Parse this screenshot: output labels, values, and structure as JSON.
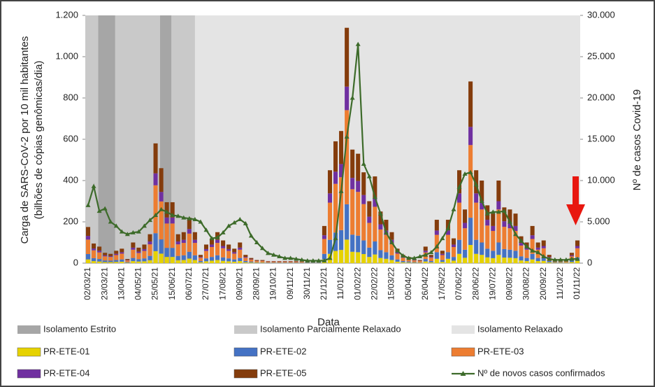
{
  "chart_data": {
    "type": "bar_line",
    "xlabel": "Data",
    "ylabel": [
      "Carga de SARS-CoV-2 por 10 mil habitantes",
      "(bilhões de cópias genômicas/dia)"
    ],
    "y2label": "Nº de casos Covid-19",
    "categories": [
      "02/03/21",
      null,
      null,
      "23/03/21",
      null,
      null,
      "13/04/21",
      null,
      null,
      "04/05/21",
      null,
      null,
      "25/05/21",
      null,
      null,
      "15/06/21",
      null,
      null,
      "06/07/21",
      null,
      null,
      "27/07/21",
      null,
      null,
      "17/08/21",
      null,
      null,
      "09/09/21",
      null,
      null,
      "28/09/21",
      null,
      null,
      "19/10/21",
      null,
      null,
      "09/11/21",
      null,
      null,
      "30/11/21",
      null,
      null,
      "21/12/21",
      null,
      null,
      "11/01/22",
      null,
      null,
      "01/02/22",
      null,
      null,
      "22/02/22",
      null,
      null,
      "15/03/22",
      null,
      null,
      "05/04/22",
      null,
      null,
      "26/04/22",
      null,
      null,
      "17/05/22",
      null,
      null,
      "07/06/22",
      null,
      null,
      "28/06/22",
      null,
      null,
      "19/07/22",
      null,
      null,
      "09/08/22",
      null,
      null,
      "30/08/22",
      null,
      null,
      "20/09/22",
      null,
      null,
      "11/10/22",
      null,
      null,
      "01/11/22"
    ],
    "regions": [
      {
        "name": "Isolamento Estrito",
        "color": "#a6a6a6"
      },
      {
        "name": "Isolamento Parcialmente Relaxado",
        "color": "#c9c9c9"
      },
      {
        "name": "Isolamento Relaxado",
        "color": "#e4e4e4"
      }
    ],
    "series": [
      {
        "name": "PR-ETE-01",
        "color": "#e6d200",
        "values": [
          18,
          10,
          8,
          5,
          5,
          6,
          7,
          2,
          10,
          8,
          9,
          14,
          58,
          46,
          30,
          30,
          14,
          15,
          22,
          15,
          4,
          9,
          12,
          15,
          11,
          9,
          7,
          10,
          4,
          3,
          2,
          2,
          1,
          1,
          1,
          1,
          1,
          1,
          1,
          1,
          1,
          1,
          18,
          45,
          59,
          64,
          114,
          55,
          53,
          44,
          30,
          42,
          25,
          21,
          15,
          7,
          4,
          3,
          2,
          2,
          8,
          4,
          21,
          6,
          21,
          12,
          45,
          26,
          88,
          45,
          40,
          28,
          24,
          40,
          27,
          26,
          24,
          13,
          10,
          18,
          10,
          11,
          4,
          2,
          2,
          2,
          5,
          11
        ]
      },
      {
        "name": "PR-ETE-02",
        "color": "#4472c4",
        "values": [
          26,
          14,
          12,
          8,
          7,
          9,
          11,
          3,
          15,
          11,
          14,
          21,
          87,
          69,
          44,
          44,
          21,
          23,
          33,
          23,
          6,
          14,
          18,
          23,
          17,
          14,
          11,
          15,
          6,
          4,
          2,
          2,
          2,
          2,
          2,
          2,
          2,
          2,
          2,
          2,
          2,
          2,
          27,
          68,
          89,
          96,
          171,
          83,
          80,
          66,
          45,
          63,
          38,
          32,
          23,
          11,
          6,
          5,
          3,
          2,
          12,
          6,
          32,
          9,
          32,
          18,
          68,
          39,
          132,
          68,
          60,
          42,
          36,
          60,
          41,
          39,
          36,
          20,
          15,
          27,
          15,
          17,
          6,
          3,
          3,
          2,
          8,
          17
        ]
      },
      {
        "name": "PR-ETE-03",
        "color": "#ed7d31",
        "values": [
          70,
          38,
          32,
          20,
          18,
          24,
          28,
          8,
          40,
          30,
          36,
          56,
          232,
          184,
          118,
          118,
          56,
          60,
          88,
          60,
          16,
          36,
          48,
          60,
          44,
          36,
          28,
          40,
          16,
          10,
          6,
          6,
          4,
          4,
          4,
          4,
          4,
          4,
          4,
          4,
          4,
          4,
          72,
          180,
          236,
          256,
          456,
          220,
          212,
          176,
          120,
          168,
          100,
          84,
          60,
          28,
          16,
          12,
          8,
          6,
          32,
          16,
          84,
          24,
          84,
          48,
          180,
          104,
          352,
          180,
          160,
          112,
          96,
          160,
          108,
          104,
          96,
          52,
          40,
          72,
          40,
          44,
          16,
          8,
          8,
          6,
          20,
          44
        ]
      },
      {
        "name": "PR-ETE-04",
        "color": "#7030a0",
        "values": [
          18,
          9,
          8,
          5,
          4,
          6,
          7,
          2,
          10,
          7,
          9,
          14,
          58,
          46,
          29,
          29,
          14,
          15,
          22,
          15,
          4,
          9,
          12,
          15,
          11,
          9,
          7,
          10,
          4,
          2,
          1,
          1,
          1,
          1,
          1,
          1,
          1,
          1,
          1,
          1,
          1,
          1,
          18,
          45,
          59,
          64,
          114,
          55,
          53,
          44,
          30,
          42,
          25,
          21,
          15,
          7,
          4,
          3,
          2,
          1,
          8,
          4,
          21,
          6,
          21,
          12,
          45,
          26,
          88,
          45,
          40,
          28,
          24,
          40,
          27,
          26,
          24,
          13,
          10,
          18,
          10,
          11,
          4,
          2,
          2,
          1,
          5,
          11
        ]
      },
      {
        "name": "PR-ETE-05",
        "color": "#843c0c",
        "values": [
          43,
          24,
          20,
          12,
          11,
          15,
          17,
          5,
          25,
          19,
          22,
          35,
          145,
          115,
          74,
          74,
          35,
          37,
          55,
          37,
          10,
          22,
          30,
          37,
          27,
          22,
          17,
          25,
          10,
          6,
          4,
          4,
          2,
          2,
          2,
          2,
          2,
          2,
          2,
          2,
          2,
          2,
          45,
          112,
          147,
          160,
          285,
          137,
          132,
          110,
          75,
          105,
          62,
          52,
          37,
          17,
          10,
          7,
          5,
          4,
          20,
          10,
          52,
          15,
          52,
          30,
          112,
          65,
          220,
          112,
          100,
          70,
          60,
          100,
          67,
          65,
          60,
          32,
          25,
          45,
          25,
          27,
          10,
          5,
          5,
          4,
          12,
          27
        ]
      },
      {
        "name": "Nº de novos casos confirmados",
        "color": "#3d6b2a",
        "axis": "y2",
        "type": "line",
        "values": [
          7000,
          9300,
          6300,
          6600,
          5000,
          4500,
          3800,
          3500,
          3700,
          3800,
          4500,
          5200,
          5800,
          6500,
          6200,
          5800,
          5700,
          5500,
          5400,
          5300,
          5000,
          4000,
          3000,
          3100,
          3700,
          4500,
          4900,
          5300,
          4800,
          3300,
          2500,
          1800,
          1200,
          1000,
          800,
          600,
          600,
          500,
          400,
          300,
          300,
          300,
          300,
          600,
          3000,
          8700,
          15300,
          20000,
          26500,
          12000,
          10500,
          8000,
          6000,
          3700,
          2500,
          1500,
          900,
          600,
          600,
          800,
          1000,
          1300,
          2000,
          3000,
          4200,
          6500,
          9200,
          10800,
          11000,
          9500,
          7500,
          6000,
          6200,
          6200,
          6300,
          5000,
          3500,
          2700,
          2000,
          1500,
          1300,
          800,
          500,
          400,
          400,
          400,
          500,
          500
        ]
      }
    ],
    "ylim": [
      0,
      1200
    ],
    "yticks": [
      0,
      200,
      400,
      600,
      800,
      {
        "value": 1000,
        "label": "1.000"
      },
      {
        "value": 1200,
        "label": "1.200"
      }
    ],
    "y2lim": [
      0,
      30000
    ],
    "y2ticks": [
      0,
      {
        "value": 5000,
        "label": "5.000"
      },
      {
        "value": 10000,
        "label": "10.000"
      },
      {
        "value": 15000,
        "label": "15.000"
      },
      {
        "value": 20000,
        "label": "20.000"
      },
      {
        "value": 25000,
        "label": "25.000"
      },
      {
        "value": 30000,
        "label": "30.000"
      }
    ],
    "grid": false,
    "stacked": true
  }
}
